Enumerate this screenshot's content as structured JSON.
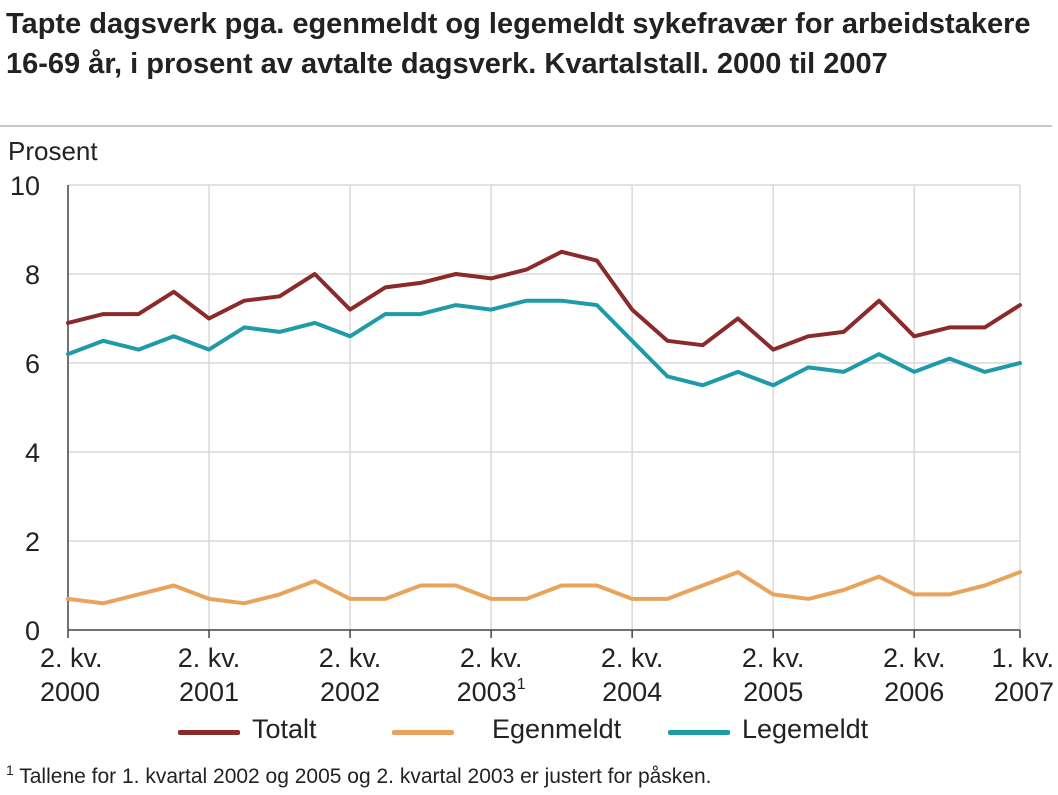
{
  "title": "Tapte dagsverk pga. egenmeldt og legemeldt sykefravær for arbeidstakere 16-69 år, i prosent av avtalte dagsverk. Kvartalstall. 2000 til 2007",
  "footnote": {
    "marker": "1",
    "text": " Tallene for 1. kvartal 2002 og 2005 og 2. kvartal 2003 er justert for påsken."
  },
  "chart_data": {
    "type": "line",
    "ylabel": "Prosent",
    "ylim": [
      0,
      10
    ],
    "yticks": [
      0,
      2,
      4,
      6,
      8,
      10
    ],
    "grid": "vertical-lines-at-labelled-quarters",
    "legend_placement": "bottom",
    "x": [
      "2000Q2",
      "2000Q3",
      "2000Q4",
      "2001Q1",
      "2001Q2",
      "2001Q3",
      "2001Q4",
      "2002Q1",
      "2002Q2",
      "2002Q3",
      "2002Q4",
      "2003Q1",
      "2003Q2",
      "2003Q3",
      "2003Q4",
      "2004Q1",
      "2004Q2",
      "2004Q3",
      "2004Q4",
      "2005Q1",
      "2005Q2",
      "2005Q3",
      "2005Q4",
      "2006Q1",
      "2006Q2",
      "2006Q3",
      "2006Q4",
      "2007Q1"
    ],
    "xtick_labels": [
      {
        "index": 0,
        "line1": "2. kv.",
        "line2": "2000",
        "sup": ""
      },
      {
        "index": 4,
        "line1": "2. kv.",
        "line2": "2001",
        "sup": ""
      },
      {
        "index": 8,
        "line1": "2. kv.",
        "line2": "2002",
        "sup": ""
      },
      {
        "index": 12,
        "line1": "2. kv.",
        "line2": "2003",
        "sup": "1"
      },
      {
        "index": 16,
        "line1": "2. kv.",
        "line2": "2004",
        "sup": ""
      },
      {
        "index": 20,
        "line1": "2. kv.",
        "line2": "2005",
        "sup": ""
      },
      {
        "index": 24,
        "line1": "2. kv.",
        "line2": "2006",
        "sup": ""
      },
      {
        "index": 27,
        "line1": "1. kv.",
        "line2": "2007",
        "sup": ""
      }
    ],
    "series": [
      {
        "name": "Totalt",
        "color": "#8b2a2a",
        "values": [
          6.9,
          7.1,
          7.1,
          7.6,
          7.0,
          7.4,
          7.5,
          8.0,
          7.2,
          7.7,
          7.8,
          8.0,
          7.9,
          8.1,
          8.5,
          8.3,
          7.2,
          6.5,
          6.4,
          7.0,
          6.3,
          6.6,
          6.7,
          7.4,
          6.6,
          6.8,
          6.8,
          7.3
        ]
      },
      {
        "name": "Egenmeldt",
        "color": "#e8a45c",
        "values": [
          0.7,
          0.6,
          0.8,
          1.0,
          0.7,
          0.6,
          0.8,
          1.1,
          0.7,
          0.7,
          1.0,
          1.0,
          0.7,
          0.7,
          1.0,
          1.0,
          0.7,
          0.7,
          1.0,
          1.3,
          0.8,
          0.7,
          0.9,
          1.2,
          0.8,
          0.8,
          1.0,
          1.3
        ]
      },
      {
        "name": "Legemeldt",
        "color": "#1f9aa8",
        "values": [
          6.2,
          6.5,
          6.3,
          6.6,
          6.3,
          6.8,
          6.7,
          6.9,
          6.6,
          7.1,
          7.1,
          7.3,
          7.2,
          7.4,
          7.4,
          7.3,
          6.5,
          5.7,
          5.5,
          5.8,
          5.5,
          5.9,
          5.8,
          6.2,
          5.8,
          6.1,
          5.8,
          6.0
        ]
      }
    ]
  }
}
